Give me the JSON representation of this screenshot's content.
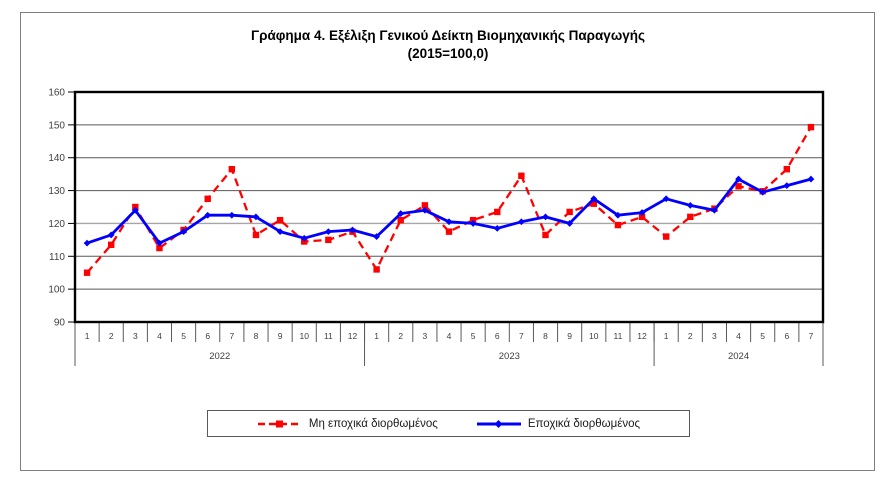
{
  "title": {
    "line1": "Γράφημα 4. Εξέλιξη Γενικού Δείκτη Βιομηχανικής Παραγωγής",
    "line2": "(2015=100,0)"
  },
  "chart_data": {
    "type": "line",
    "title": "Γράφημα 4. Εξέλιξη Γενικού Δείκτη Βιομηχανικής Παραγωγής",
    "subtitle": "(2015=100,0)",
    "ylim": [
      90,
      160
    ],
    "y_ticks": [
      90,
      100,
      110,
      120,
      130,
      140,
      150,
      160
    ],
    "grid": "horizontal",
    "highlight_gridline": 120,
    "legend_position": "bottom",
    "x_groups": [
      {
        "year": "2022",
        "months": [
          "1",
          "2",
          "3",
          "4",
          "5",
          "6",
          "7",
          "8",
          "9",
          "10",
          "11",
          "12"
        ]
      },
      {
        "year": "2023",
        "months": [
          "1",
          "2",
          "3",
          "4",
          "5",
          "6",
          "7",
          "8",
          "9",
          "10",
          "11",
          "12"
        ]
      },
      {
        "year": "2024",
        "months": [
          "1",
          "2",
          "3",
          "4",
          "5",
          "6",
          "7"
        ]
      }
    ],
    "series": [
      {
        "name": "Μη εποχικά διορθωμένος",
        "color": "#ff0000",
        "line_style": "dashed",
        "marker": "square",
        "values": [
          105,
          113.5,
          125,
          112.5,
          118,
          127.5,
          136.5,
          116.5,
          121,
          114.5,
          115,
          117.5,
          106,
          121,
          125.5,
          117.5,
          121,
          123.5,
          134.5,
          116.5,
          123.5,
          126,
          119.5,
          122,
          116,
          122,
          124.5,
          131.3,
          129.8,
          136.5,
          149.3
        ]
      },
      {
        "name": "Εποχικά διορθωμένος",
        "color": "#0000ff",
        "line_style": "solid",
        "marker": "diamond",
        "values": [
          114,
          116.5,
          124,
          114,
          117.5,
          122.5,
          122.5,
          122,
          117.5,
          115.5,
          117.5,
          118,
          116,
          123,
          124,
          120.5,
          120,
          118.5,
          120.5,
          122,
          120,
          127.5,
          122.5,
          123.3,
          127.5,
          125.5,
          124,
          133.5,
          129.5,
          131.5,
          133.5
        ]
      }
    ],
    "axis_color": "#000000",
    "gridline_color": "#595959",
    "highlight_gridline_color": "#a6a6a6",
    "tick_label_color": "#404040"
  }
}
